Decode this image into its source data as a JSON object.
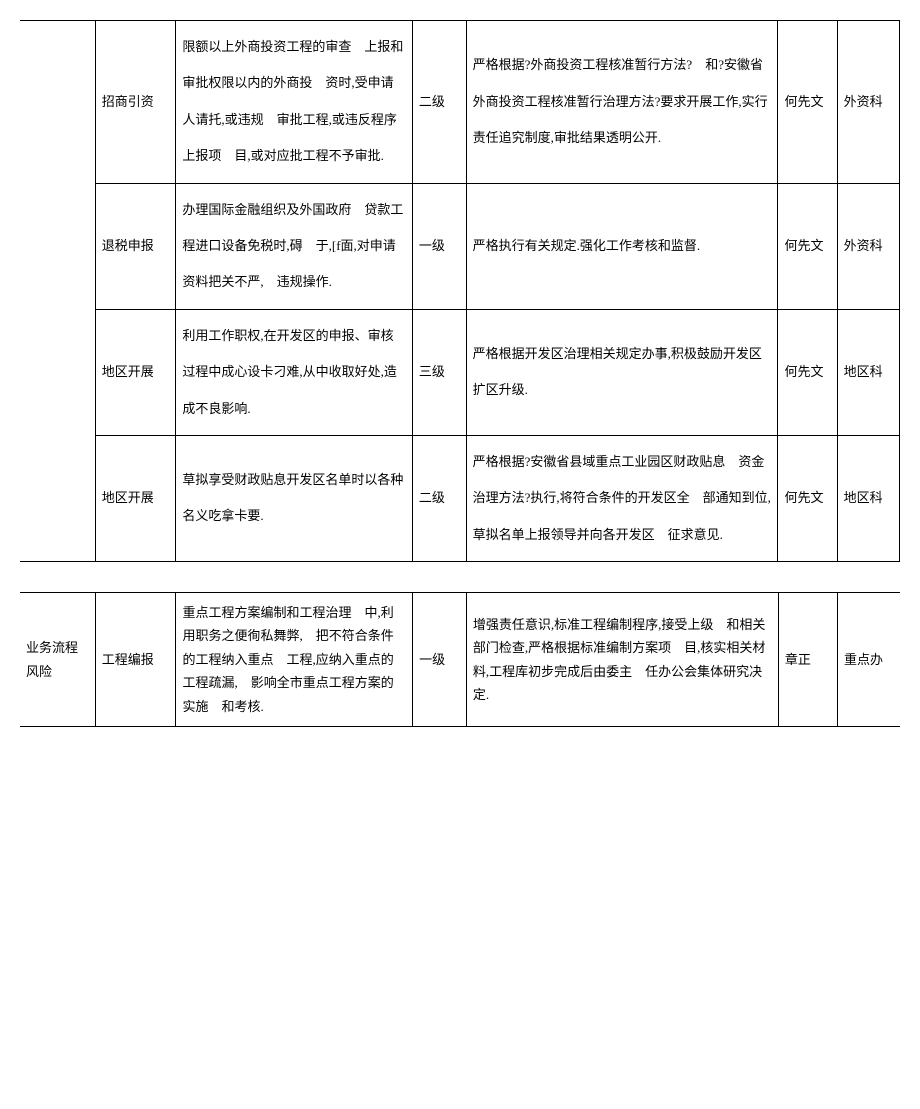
{
  "table1": {
    "rows": [
      {
        "category": "",
        "subcategory": "招商引资",
        "description": "限额以上外商投资工程的审查　上报和审批权限以内的外商投　资时,受申请人请托,或违规　审批工程,或违反程序上报项　目,或对应批工程不予审批.",
        "level": "二级",
        "measure": "严格根据?外商投资工程核准暂行方法?　和?安徽省外商投资工程核准暂行治理方法?要求开展工作,实行责任追究制度,审批结果透明公开.",
        "person": "何先文",
        "dept": "外资科"
      },
      {
        "category": "",
        "subcategory": "退税申报",
        "description": "办理国际金融组织及外国政府　贷款工程进口设备免税时,碍　于,[f面,对申请资料把关不严,　违规操作.",
        "level": "一级",
        "measure": "严格执行有关规定.强化工作考核和监督.",
        "person": "何先文",
        "dept": "外资科"
      },
      {
        "category": "",
        "subcategory": "地区开展",
        "description": "利用工作职权,在开发区的申报、审核过程中成心设卡刁难,从中收取好处,造成不良影响.",
        "level": "三级",
        "measure": "严格根据开发区治理相关规定办事,积极鼓励开发区扩区升级.",
        "person": "何先文",
        "dept": "地区科"
      },
      {
        "category": "",
        "subcategory": "地区开展",
        "description": "草拟享受财政贴息开发区名单时以各种名义吃拿卡要.",
        "level": "二级",
        "measure": "严格根据?安徽省县域重点工业园区财政贴息　资金治理方法?执行,将符合条件的开发区全　部通知到位,草拟名单上报领导并向各开发区　征求意见.",
        "person": "何先文",
        "dept": "地区科"
      }
    ]
  },
  "table2": {
    "rows": [
      {
        "category": "业务流程风险",
        "subcategory": "工程编报",
        "description": "重点工程方案编制和工程治理　中,利用职务之便徇私舞弊,　把不符合条件的工程纳入重点　工程,应纳入重点的工程疏漏,　影响全市重点工程方案的实施　和考核.",
        "level": "一级",
        "measure": "增强责任意识,标准工程编制程序,接受上级　和相关部门检查,严格根据标准编制方案项　目,核实相关材料,工程库初步完成后由委主　任办公会集体研究决定.",
        "person": "章正",
        "dept": "重点办"
      }
    ]
  },
  "styling": {
    "border_color": "#000000",
    "background_color": "#ffffff",
    "text_color": "#000000",
    "font_family": "SimSun",
    "font_size": 13,
    "line_height_table1": 2.8,
    "line_height_table2": 1.8,
    "column_widths": {
      "category": 70,
      "subcategory": 75,
      "description": 220,
      "level": 50,
      "measure": 290,
      "person": 55,
      "dept": 58
    }
  }
}
